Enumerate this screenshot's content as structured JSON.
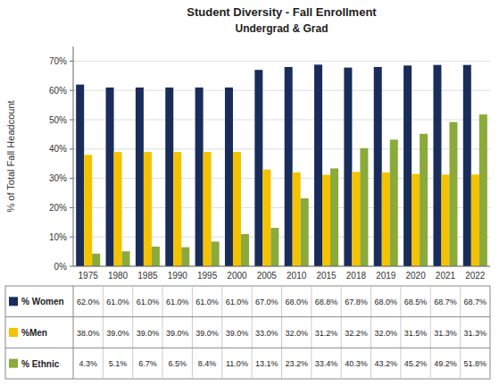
{
  "chart_data": {
    "type": "bar",
    "title": "Student Diversity - Fall Enrollment",
    "subtitle": "Undergrad & Grad",
    "y_label": "% of Total Fall Headcount",
    "categories": [
      "1975",
      "1980",
      "1985",
      "1990",
      "1995",
      "2000",
      "2005",
      "2010",
      "2015",
      "2018",
      "2019",
      "2020",
      "2021",
      "2022"
    ],
    "series": [
      {
        "name": "% Women",
        "color": "#1a2d5a",
        "values": [
          62.0,
          61.0,
          61.0,
          61.0,
          61.0,
          61.0,
          67.0,
          68.0,
          68.8,
          67.8,
          68.0,
          68.5,
          68.7,
          68.7
        ],
        "value_labels": [
          "62.0%",
          "61.0%",
          "61.0%",
          "61.0%",
          "61.0%",
          "61.0%",
          "67.0%",
          "68.0%",
          "68.8%",
          "67.8%",
          "68.0%",
          "68.5%",
          "68.7%",
          "68.7%"
        ]
      },
      {
        "name": "%Men",
        "color": "#f5c200",
        "values": [
          38.0,
          39.0,
          39.0,
          39.0,
          39.0,
          39.0,
          33.0,
          32.0,
          31.2,
          32.2,
          32.0,
          31.5,
          31.3,
          31.3
        ],
        "value_labels": [
          "38.0%",
          "39.0%",
          "39.0%",
          "39.0%",
          "39.0%",
          "39.0%",
          "33.0%",
          "32.0%",
          "31.2%",
          "32.2%",
          "32.0%",
          "31.5%",
          "31.3%",
          "31.3%"
        ]
      },
      {
        "name": "% Ethnic",
        "color": "#8aaa3a",
        "values": [
          4.3,
          5.1,
          6.7,
          6.5,
          8.4,
          11.0,
          13.1,
          23.2,
          33.4,
          40.3,
          43.2,
          45.2,
          49.2,
          51.8
        ],
        "value_labels": [
          "4.3%",
          "5.1%",
          "6.7%",
          "6.5%",
          "8.4%",
          "11.0%",
          "13.1%",
          "23.2%",
          "33.4%",
          "40.3%",
          "43.2%",
          "45.2%",
          "49.2%",
          "51.8%"
        ]
      }
    ],
    "ylim": [
      0,
      75
    ],
    "yticks": [
      {
        "value": 0,
        "label": "0%"
      },
      {
        "value": 10,
        "label": "10%"
      },
      {
        "value": 20,
        "label": "20%"
      },
      {
        "value": 30,
        "label": "30%"
      },
      {
        "value": 40,
        "label": "40%"
      },
      {
        "value": 50,
        "label": "50%"
      },
      {
        "value": 60,
        "label": "60%"
      },
      {
        "value": 70,
        "label": "70%"
      }
    ],
    "grid": true
  }
}
